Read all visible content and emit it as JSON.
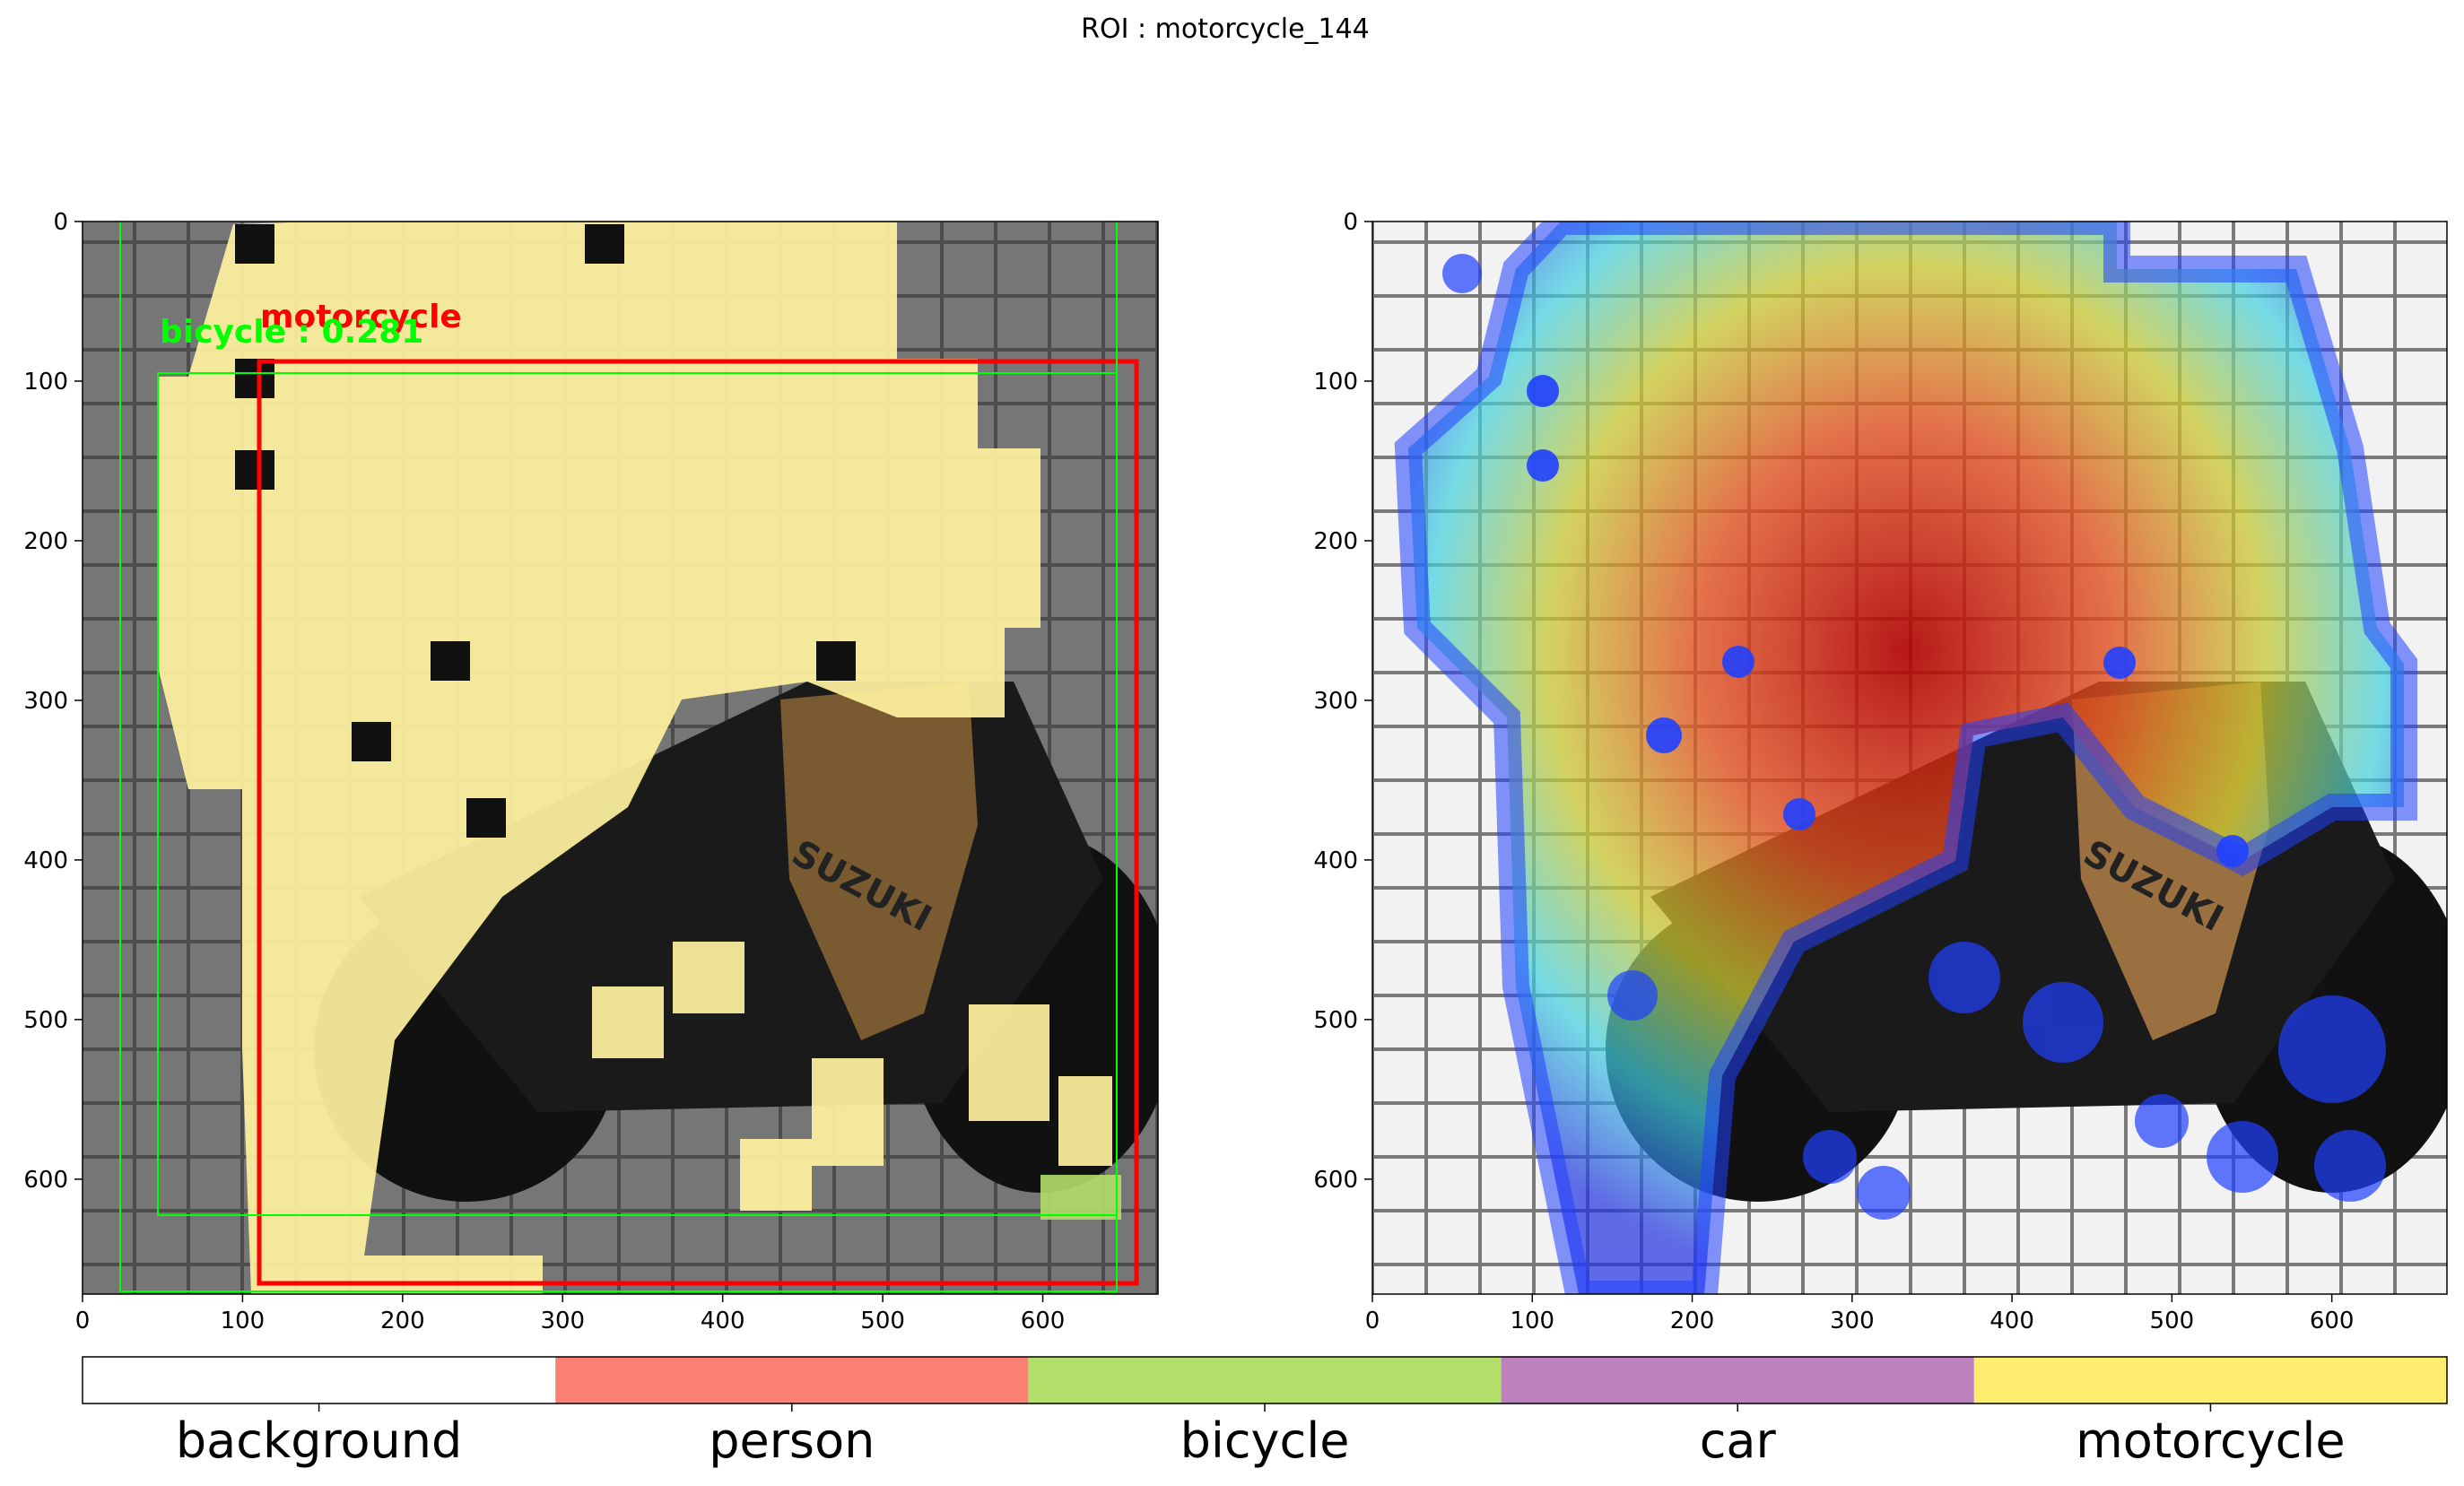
{
  "figure": {
    "title": "ROI : motorcycle_144"
  },
  "chart_data": [
    {
      "type": "heatmap",
      "panel": "left",
      "description_visible": "segmentation overlay with detection boxes",
      "xlim": [
        0,
        672
      ],
      "ylim": [
        672,
        0
      ],
      "xticks": [
        0,
        100,
        200,
        300,
        400,
        500,
        600
      ],
      "yticks": [
        0,
        100,
        200,
        300,
        400,
        500,
        600
      ],
      "boxes": [
        {
          "label": "motorcycle",
          "color": "#ff0000",
          "x0": 112,
          "y0": 87,
          "x1": 658,
          "y1": 665
        },
        {
          "label": "bicycle : 0.281",
          "color": "#00ff00",
          "x0": 23,
          "y0": 0,
          "x1": 646,
          "y1": 670
        },
        {
          "label": "",
          "color": "#00ff00",
          "x0": 47,
          "y0": 95,
          "x1": 646,
          "y1": 624
        }
      ],
      "annotations": [
        {
          "text": "motorcycle",
          "color": "#ff0000",
          "x": 112,
          "y": 75
        },
        {
          "text": "bicycle : 0.281",
          "color": "#00ff00",
          "x": 47,
          "y": 82
        }
      ]
    },
    {
      "type": "heatmap",
      "panel": "right",
      "xlim": [
        0,
        672
      ],
      "ylim": [
        672,
        0
      ],
      "xticks": [
        0,
        100,
        200,
        300,
        400,
        500,
        600
      ],
      "yticks": [
        0,
        100,
        200,
        300,
        400,
        500,
        600
      ]
    },
    {
      "type": "bar",
      "panel": "legend-colorbar",
      "categories": [
        "background",
        "person",
        "bicycle",
        "car",
        "motorcycle"
      ],
      "colors": [
        "#ffffff",
        "#fa8072",
        "#b3de69",
        "#bc80bd",
        "#ffed6f"
      ]
    }
  ]
}
